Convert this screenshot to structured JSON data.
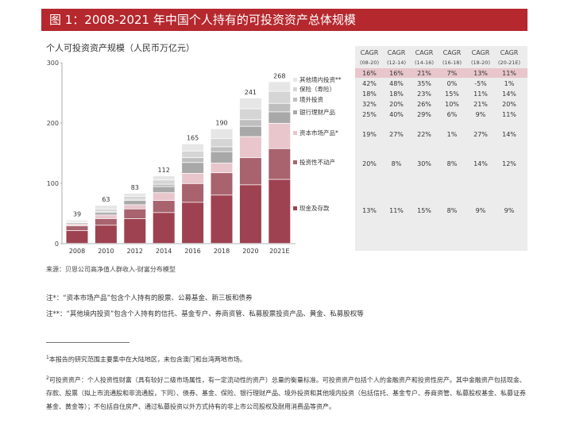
{
  "title": "图 1：2008-2021 年中国个人持有的可投资资产总体规模",
  "chart_subtitle": "个人可投资资产规模（人民币万亿元）",
  "source": "来源：贝恩公司高净值人群收入-财富分布模型",
  "notes": [
    "注*：“资本市场产品”包含个人持有的股票、公募基金、新三板和债券",
    "注**：“其他境内投资”包含个人持有的信托、基金专户、券商资管、私募股票投资产品、黄金、私募股权等"
  ],
  "footnotes": [
    {
      "mark": "1",
      "text": "本报告的研究范围主要集中在大陆地区，未包含澳门和台湾两地市场。"
    },
    {
      "mark": "2",
      "text": "可投资资产：个人投资性财富（具有较好二级市场属性，有一定流动性的资产）总量的衡量标准。可投资资产包括个人的金融资产和投资性房产。其中金融资产包括现金、存款、股票（拟上市流通股和非流通股，下同）、债券、基金、保险、银行理财产品、境外投资和其他境内投资（包括信托、基金专户、券商资管、私募股权基金、私募证券基金、黄金等）；不包括自住房产、通过私募投资以外方式持有的非上市公司股权及耐用消费品等资产。"
    }
  ],
  "colors": {
    "title_bg": "#b5282e",
    "segments": [
      "#9e4150",
      "#a8636e",
      "#e8c6cc",
      "#a8a8a8",
      "#bebebe",
      "#d5d5d5",
      "#e6e6e6"
    ],
    "table_bg": "#ececec",
    "highlight_row": "#e8c6cc"
  },
  "chart_data": {
    "type": "bar",
    "stacked": true,
    "categories": [
      "2008",
      "2010",
      "2012",
      "2014",
      "2016",
      "2018",
      "2020",
      "2021E"
    ],
    "totals": [
      39,
      63,
      83,
      112,
      165,
      190,
      241,
      268
    ],
    "yticks": [
      0,
      100,
      200,
      300
    ],
    "ylim": [
      0,
      300
    ],
    "series": [
      {
        "name": "现金及存款",
        "values": [
          21,
          30,
          41,
          51,
          68,
          80,
          97,
          106
        ]
      },
      {
        "name": "投资性不动产",
        "values": [
          8,
          11,
          16,
          20,
          31,
          37,
          45,
          51
        ]
      },
      {
        "name": "资本市场产品*",
        "values": [
          3,
          6,
          7,
          13,
          17,
          16,
          35,
          42
        ]
      },
      {
        "name": "银行理财产品",
        "values": [
          2,
          4,
          7,
          10,
          18,
          19,
          17,
          19
        ]
      },
      {
        "name": "境外投资",
        "values": [
          1,
          2,
          2,
          4,
          8,
          8,
          11,
          14
        ]
      },
      {
        "name": "保险（寿险）",
        "values": [
          2,
          4,
          5,
          7,
          11,
          14,
          18,
          20
        ]
      },
      {
        "name": "其他境内投资**",
        "values": [
          2,
          6,
          5,
          7,
          12,
          16,
          18,
          16
        ]
      }
    ],
    "table": {
      "headers": [
        {
          "top": "CAGR",
          "bottom": "(08-20)"
        },
        {
          "top": "CAGR",
          "bottom": "(12-14)"
        },
        {
          "top": "CAGR",
          "bottom": "(14-16)"
        },
        {
          "top": "CAGR",
          "bottom": "(16-18)"
        },
        {
          "top": "CAGR",
          "bottom": "(18-20)"
        },
        {
          "top": "CAGR",
          "bottom": "(20-21E)"
        }
      ],
      "total_row": [
        "16%",
        "16%",
        "21%",
        "7%",
        "13%",
        "11%"
      ],
      "rows": [
        {
          "label": "其他境内投资**",
          "values": [
            "42%",
            "48%",
            "35%",
            "0%",
            "-5%",
            "1%"
          ]
        },
        {
          "label": "保险（寿险）",
          "values": [
            "18%",
            "18%",
            "23%",
            "15%",
            "11%",
            "14%"
          ]
        },
        {
          "label": "境外投资",
          "values": [
            "32%",
            "20%",
            "26%",
            "10%",
            "21%",
            "20%"
          ]
        },
        {
          "label": "银行理财产品",
          "values": [
            "25%",
            "40%",
            "29%",
            "6%",
            "9%",
            "11%"
          ]
        },
        {
          "label": "资本市场产品*",
          "values": [
            "19%",
            "27%",
            "22%",
            "1%",
            "27%",
            "14%"
          ]
        },
        {
          "label": "投资性不动产",
          "values": [
            "20%",
            "8%",
            "30%",
            "8%",
            "14%",
            "12%"
          ]
        },
        {
          "label": "现金及存款",
          "values": [
            "13%",
            "11%",
            "15%",
            "8%",
            "9%",
            "9%"
          ]
        }
      ]
    }
  }
}
